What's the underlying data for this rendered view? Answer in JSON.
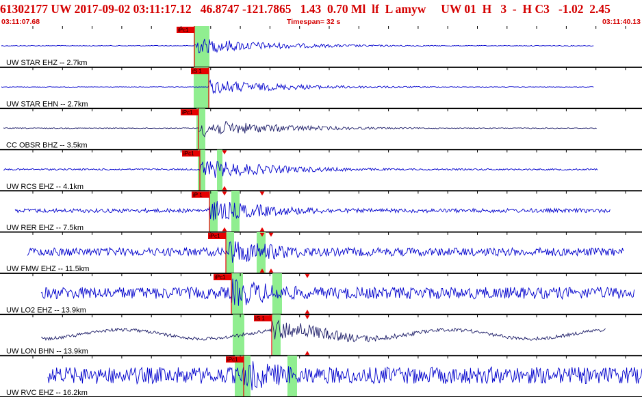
{
  "header": {
    "event_line": "61302177 UW 2017-09-02 03:11:17.12   46.8747 -121.7865   1.43  0.70 Ml  lf  L amyw     UW 01  H   3  -  H C3   -1.02  2.45",
    "start_time": "03:11:07.68",
    "timespan": "Timespan=  32 s",
    "end_time": "03:11:40.13"
  },
  "colors": {
    "header_text": "#d40000",
    "trace_blue": "#0000cc",
    "trace_dark": "#1a1a66",
    "pick_red": "#e60000",
    "highlight_green": "#90ee90"
  },
  "channels": [
    {
      "label": "UW STAR EHZ -- 2.7km",
      "pick": "iPc1",
      "color": "blue",
      "amp": 0.45
    },
    {
      "label": "UW STAR EHN -- 2.7km",
      "pick": "iS 1",
      "color": "blue",
      "amp": 0.4
    },
    {
      "label": "CC OBSR BHZ -- 3.5km",
      "pick": "iPc1",
      "color": "dark",
      "amp": 0.5
    },
    {
      "label": "UW RCS EHZ -- 4.1km",
      "pick": "iPc1",
      "color": "blue",
      "amp": 0.55
    },
    {
      "label": "UW RER EHZ -- 7.5km",
      "pick": "iP 1",
      "color": "blue",
      "amp": 0.6
    },
    {
      "label": "UW FMW EHZ -- 11.5km",
      "pick": "iPc1",
      "color": "blue",
      "amp": 0.75
    },
    {
      "label": "UW LO2 EHZ -- 13.9km",
      "pick": "iPc1",
      "color": "blue",
      "amp": 0.8
    },
    {
      "label": "UW LON BHN -- 13.9km",
      "pick": "iS 1",
      "color": "dark",
      "amp": 0.6
    },
    {
      "label": "UW RVC EHZ -- 16.2km",
      "pick": "iPc1",
      "color": "blue",
      "amp": 0.9
    }
  ]
}
